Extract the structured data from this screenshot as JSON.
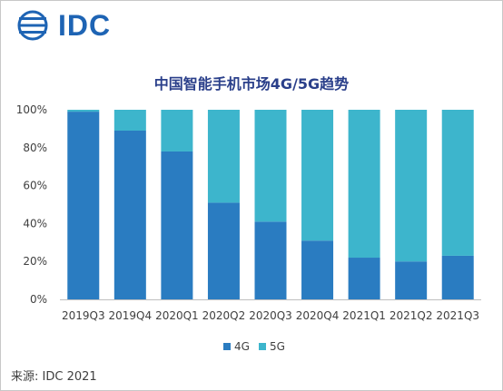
{
  "logo": {
    "text": "IDC"
  },
  "source": "来源: IDC 2021",
  "colors": {
    "4G": "#2a7cc1",
    "5G": "#3db5cc"
  },
  "chart_data": {
    "type": "bar",
    "stacked": true,
    "title": "中国智能手机市场4G/5G趋势",
    "categories": [
      "2019Q3",
      "2019Q4",
      "2020Q1",
      "2020Q2",
      "2020Q3",
      "2020Q4",
      "2021Q1",
      "2021Q2",
      "2021Q3"
    ],
    "series": [
      {
        "name": "4G",
        "values": [
          99,
          89,
          78,
          51,
          41,
          31,
          22,
          20,
          23
        ]
      },
      {
        "name": "5G",
        "values": [
          1,
          11,
          22,
          49,
          59,
          69,
          78,
          80,
          77
        ]
      }
    ],
    "yticks": [
      "0%",
      "20%",
      "40%",
      "60%",
      "80%",
      "100%"
    ],
    "ylim": [
      0,
      100
    ],
    "legend": "bottom"
  }
}
